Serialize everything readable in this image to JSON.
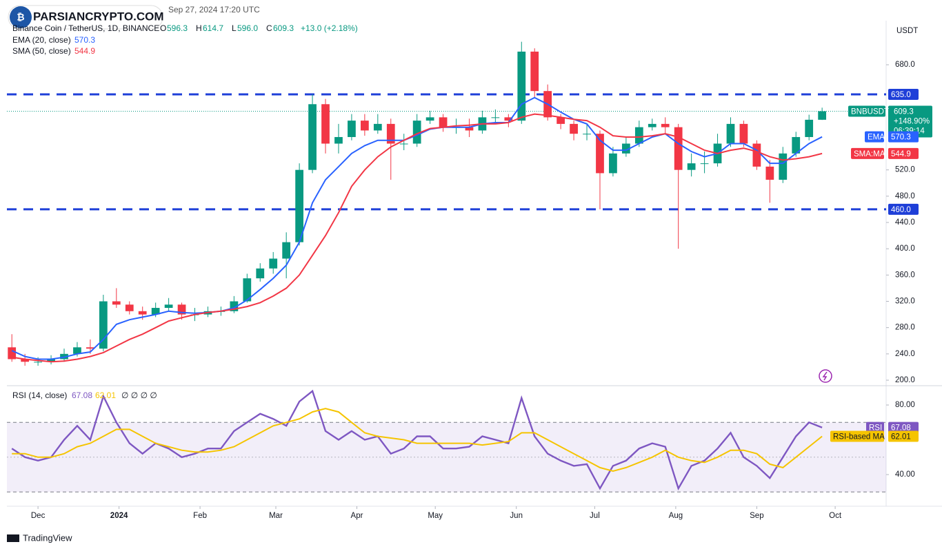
{
  "logo": "PARSIANCRYPTO.COM",
  "timestamp": "Sep 27, 2024 17:20 UTC",
  "footer": "TradingView",
  "chart_data": [
    {
      "type": "candlestick",
      "title": "Binance Coin / TetherUS, 1D, BINANCE",
      "currency": "USDT",
      "header": {
        "open_label": "O",
        "open": "596.3",
        "high_label": "H",
        "high": "614.7",
        "low_label": "L",
        "low": "596.0",
        "close_label": "C",
        "close": "609.3",
        "change": "+13.0 (+2.18%)"
      },
      "price_tag": {
        "symbol": "BNBUSDT",
        "price": "609.3",
        "change": "+148.90%",
        "countdown": "06:39:14",
        "value": 609.3
      },
      "x": [
        -10,
        -5,
        0,
        5,
        10,
        15,
        20,
        25,
        30,
        35,
        40,
        45,
        50,
        55,
        60,
        65,
        70,
        75,
        80,
        85,
        90,
        95,
        100,
        105,
        110,
        115,
        120,
        125,
        130,
        135,
        140,
        145,
        150,
        155,
        160,
        165,
        170,
        175,
        180,
        185,
        190,
        195,
        200,
        205,
        210,
        215,
        220,
        225,
        230,
        235,
        240,
        245,
        250,
        255,
        260,
        265,
        270,
        275,
        280,
        285,
        290,
        295,
        300
      ],
      "open": [
        250,
        232,
        228,
        228,
        232,
        240,
        250,
        248,
        320,
        315,
        305,
        300,
        310,
        315,
        300,
        300,
        305,
        305,
        320,
        355,
        370,
        385,
        410,
        520,
        620,
        560,
        570,
        595,
        580,
        590,
        560,
        560,
        595,
        600,
        585,
        585,
        580,
        600,
        600,
        595,
        700,
        640,
        600,
        590,
        575,
        575,
        515,
        545,
        560,
        585,
        590,
        585,
        520,
        530,
        530,
        560,
        590,
        560,
        525,
        505,
        545,
        570,
        596.3
      ],
      "high": [
        270,
        240,
        235,
        238,
        248,
        258,
        262,
        330,
        340,
        320,
        312,
        318,
        325,
        318,
        310,
        312,
        312,
        328,
        362,
        378,
        395,
        425,
        530,
        635,
        628,
        590,
        605,
        605,
        605,
        598,
        575,
        605,
        610,
        605,
        598,
        598,
        610,
        612,
        605,
        715,
        705,
        650,
        605,
        595,
        590,
        580,
        555,
        570,
        595,
        598,
        600,
        590,
        545,
        548,
        575,
        600,
        595,
        565,
        535,
        555,
        578,
        604,
        614.7
      ],
      "low": [
        228,
        222,
        222,
        224,
        228,
        236,
        240,
        244,
        310,
        300,
        292,
        296,
        305,
        292,
        290,
        296,
        298,
        302,
        318,
        350,
        362,
        355,
        405,
        515,
        545,
        545,
        565,
        572,
        575,
        505,
        550,
        555,
        590,
        578,
        575,
        570,
        575,
        590,
        585,
        590,
        630,
        595,
        582,
        565,
        565,
        460,
        510,
        540,
        555,
        580,
        575,
        400,
        510,
        515,
        525,
        555,
        555,
        520,
        470,
        500,
        540,
        565,
        596.0
      ],
      "close": [
        232,
        228,
        228,
        232,
        240,
        250,
        248,
        320,
        315,
        305,
        300,
        310,
        315,
        300,
        300,
        305,
        305,
        320,
        355,
        370,
        385,
        410,
        520,
        620,
        560,
        570,
        595,
        580,
        590,
        560,
        560,
        595,
        600,
        585,
        585,
        580,
        600,
        600,
        595,
        700,
        640,
        600,
        590,
        575,
        575,
        515,
        545,
        560,
        585,
        590,
        585,
        520,
        530,
        530,
        560,
        590,
        560,
        525,
        505,
        545,
        570,
        596.3,
        609.3
      ],
      "up_color": "#089981",
      "down_color": "#f23645",
      "series": [
        {
          "name": "EMA",
          "label": "EMA (20, close)",
          "color": "#2962ff",
          "values": [
            245,
            236,
            232,
            232,
            235,
            240,
            243,
            262,
            285,
            292,
            296,
            300,
            305,
            303,
            302,
            303,
            305,
            310,
            322,
            338,
            355,
            375,
            410,
            470,
            505,
            525,
            545,
            557,
            565,
            565,
            565,
            573,
            582,
            585,
            585,
            585,
            590,
            592,
            592,
            620,
            630,
            620,
            608,
            597,
            590,
            565,
            550,
            550,
            560,
            570,
            575,
            560,
            548,
            540,
            545,
            560,
            560,
            550,
            530,
            530,
            545,
            560,
            570.3
          ]
        },
        {
          "name": "SMA:MA",
          "label": "SMA (50, close)",
          "color": "#f23645",
          "values": [
            235,
            232,
            230,
            228,
            229,
            232,
            236,
            242,
            252,
            262,
            270,
            280,
            290,
            295,
            300,
            303,
            305,
            308,
            312,
            318,
            328,
            340,
            360,
            390,
            420,
            455,
            495,
            520,
            540,
            555,
            565,
            575,
            583,
            585,
            587,
            588,
            590,
            590,
            592,
            600,
            605,
            603,
            600,
            597,
            595,
            585,
            572,
            570,
            570,
            572,
            575,
            570,
            560,
            550,
            545,
            550,
            553,
            548,
            540,
            535,
            537,
            540,
            544.9
          ]
        }
      ],
      "levels": [
        {
          "value": 635,
          "label": "635.0"
        },
        {
          "value": 460,
          "label": "460.0"
        }
      ],
      "level_color": "#1e3fd8",
      "xlim": [
        -11.9,
        324.5
      ],
      "xticks": [
        {
          "value": 0,
          "label": "Dec"
        },
        {
          "value": 31,
          "label": "2024"
        },
        {
          "value": 62,
          "label": "Feb"
        },
        {
          "value": 91,
          "label": "Mar"
        },
        {
          "value": 122,
          "label": "Apr"
        },
        {
          "value": 152,
          "label": "May"
        },
        {
          "value": 183,
          "label": "Jun"
        },
        {
          "value": 213,
          "label": "Jul"
        },
        {
          "value": 244,
          "label": "Aug"
        },
        {
          "value": 275,
          "label": "Sep"
        },
        {
          "value": 305,
          "label": "Oct"
        }
      ],
      "ylim": [
        193.7,
        747.1
      ],
      "yticks": [
        {
          "value": 200,
          "label": "200.0"
        },
        {
          "value": 240,
          "label": "240.0"
        },
        {
          "value": 280,
          "label": "280.0"
        },
        {
          "value": 320,
          "label": "320.0"
        },
        {
          "value": 360,
          "label": "360.0"
        },
        {
          "value": 400,
          "label": "400.0"
        },
        {
          "value": 440,
          "label": "440.0"
        },
        {
          "value": 480,
          "label": "480.0"
        },
        {
          "value": 520,
          "label": "520.0"
        },
        {
          "value": 680,
          "label": "680.0"
        }
      ],
      "grid": false
    },
    {
      "type": "line",
      "title": "RSI (14, close)",
      "extra": "∅ ∅ ∅ ∅",
      "series": [
        {
          "name": "RSI",
          "color": "#7e57c2",
          "values": [
            55,
            50,
            48,
            50,
            60,
            68,
            60,
            85,
            70,
            58,
            52,
            58,
            55,
            50,
            52,
            55,
            55,
            65,
            70,
            75,
            72,
            68,
            82,
            88,
            65,
            60,
            65,
            60,
            62,
            52,
            55,
            62,
            62,
            55,
            55,
            56,
            62,
            60,
            58,
            84,
            62,
            52,
            48,
            45,
            46,
            32,
            45,
            48,
            55,
            58,
            56,
            32,
            45,
            48,
            55,
            64,
            50,
            45,
            38,
            50,
            62,
            70,
            67.08
          ]
        },
        {
          "name": "RSI-based MA",
          "color": "#f5c400",
          "values": [
            52,
            52,
            50,
            50,
            52,
            56,
            58,
            62,
            66,
            66,
            62,
            58,
            56,
            54,
            53,
            53,
            54,
            56,
            60,
            64,
            68,
            70,
            72,
            76,
            78,
            76,
            70,
            64,
            62,
            61,
            60,
            58,
            58,
            58,
            58,
            58,
            57,
            58,
            59,
            64,
            64,
            60,
            56,
            52,
            48,
            44,
            42,
            44,
            47,
            50,
            54,
            50,
            48,
            47,
            50,
            54,
            54,
            52,
            46,
            44,
            50,
            56,
            62.01
          ]
        }
      ],
      "bands": [
        70,
        30
      ],
      "midline": 50,
      "ylim": [
        21.8,
        91.1
      ],
      "yticks": [
        {
          "value": 40,
          "label": "40.00"
        },
        {
          "value": 80,
          "label": "80.00"
        }
      ]
    }
  ]
}
